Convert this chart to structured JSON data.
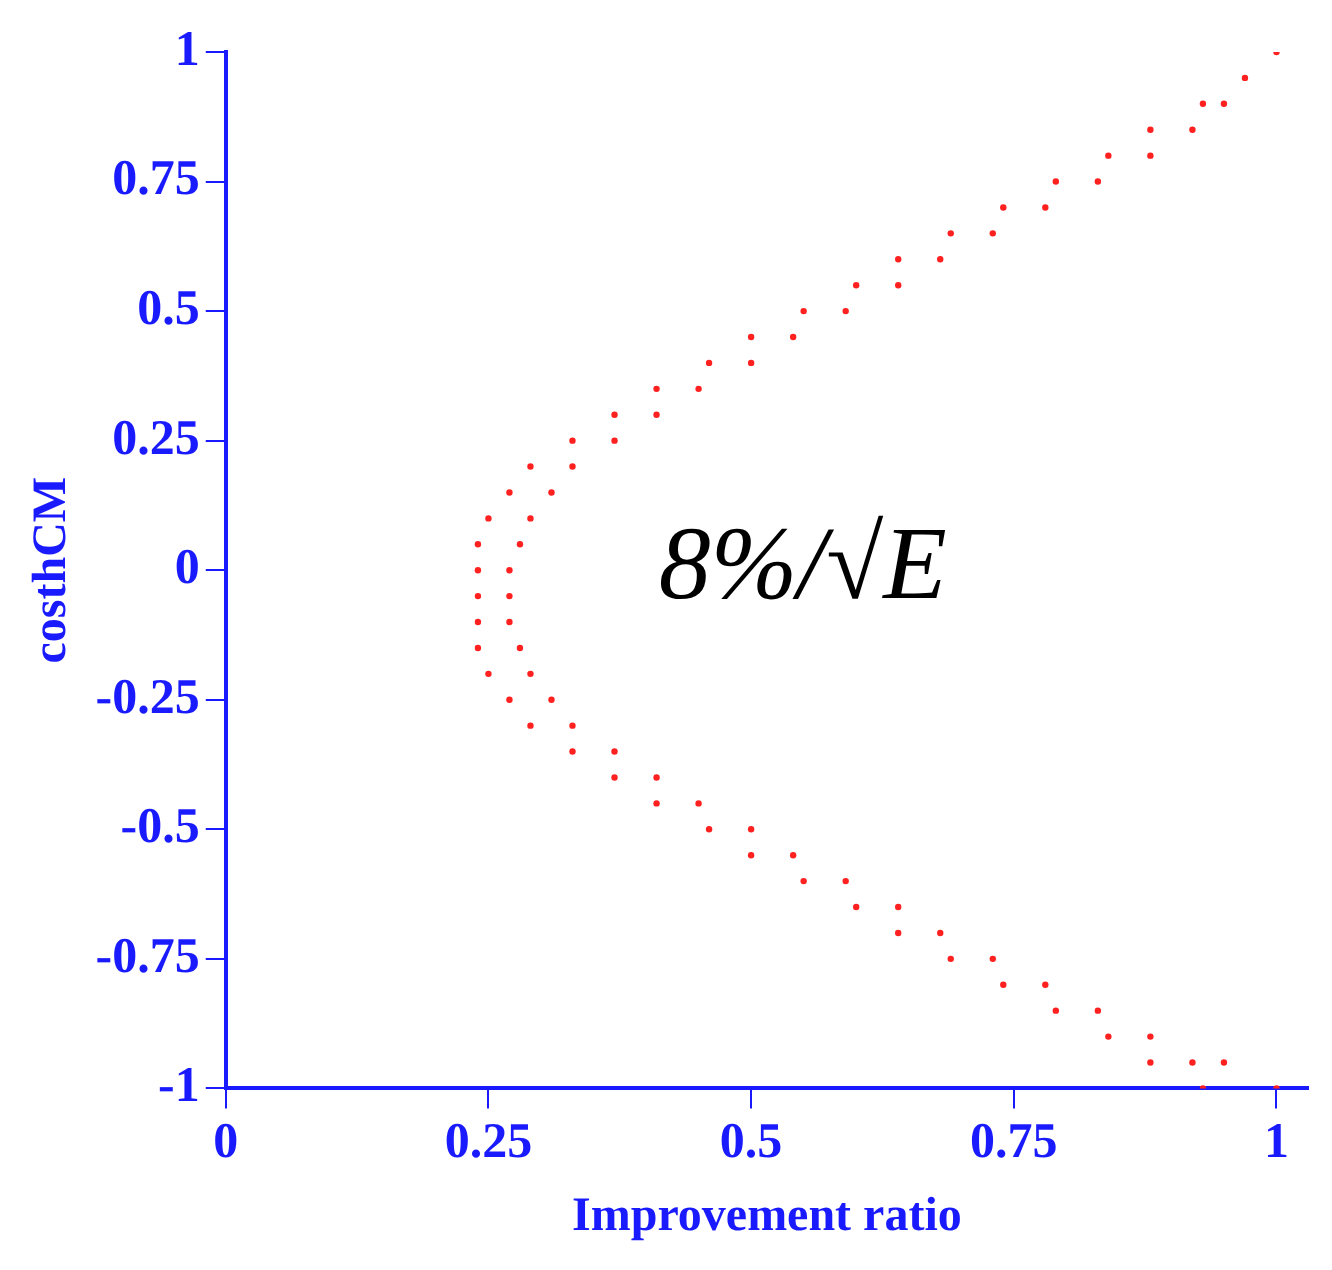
{
  "chart_data": {
    "type": "scatter",
    "xlabel": "Improvement ratio",
    "ylabel": "costhCM",
    "annotations": [
      "8%/√E"
    ],
    "xlim": [
      0,
      1.03
    ],
    "xticks": [
      0,
      0.25,
      0.5,
      0.75,
      1
    ],
    "ylim": [
      -1,
      1
    ],
    "yticks": [
      -1,
      -0.75,
      -0.5,
      -0.25,
      0,
      0.25,
      0.5,
      0.75,
      1
    ],
    "grid": false,
    "legend": false,
    "marker": "circle",
    "series": [
      {
        "color": "#ff2020",
        "x": [
          1.0,
          0.97,
          0.93,
          0.95,
          0.88,
          0.92,
          0.84,
          0.88,
          0.79,
          0.83,
          0.74,
          0.78,
          0.69,
          0.73,
          0.64,
          0.68,
          0.6,
          0.64,
          0.55,
          0.59,
          0.5,
          0.54,
          0.46,
          0.5,
          0.41,
          0.45,
          0.37,
          0.41,
          0.33,
          0.37,
          0.29,
          0.33,
          0.27,
          0.31,
          0.25,
          0.29,
          0.24,
          0.28,
          0.24,
          0.27,
          0.24,
          0.27,
          0.24,
          0.27,
          0.24,
          0.28,
          0.25,
          0.29,
          0.27,
          0.31,
          0.29,
          0.33,
          0.33,
          0.37,
          0.37,
          0.41,
          0.41,
          0.45,
          0.46,
          0.5,
          0.5,
          0.54,
          0.55,
          0.59,
          0.6,
          0.64,
          0.64,
          0.68,
          0.69,
          0.73,
          0.74,
          0.78,
          0.79,
          0.83,
          0.84,
          0.88,
          0.88,
          0.92,
          0.93,
          0.95,
          1.0
        ],
        "values": [
          1.0,
          0.95,
          0.9,
          0.9,
          0.85,
          0.85,
          0.8,
          0.8,
          0.75,
          0.75,
          0.7,
          0.7,
          0.65,
          0.65,
          0.6,
          0.6,
          0.55,
          0.55,
          0.5,
          0.5,
          0.45,
          0.45,
          0.4,
          0.4,
          0.35,
          0.35,
          0.3,
          0.3,
          0.25,
          0.25,
          0.2,
          0.2,
          0.15,
          0.15,
          0.1,
          0.1,
          0.05,
          0.05,
          0.0,
          0.0,
          -0.05,
          -0.05,
          -0.1,
          -0.1,
          -0.15,
          -0.15,
          -0.2,
          -0.2,
          -0.25,
          -0.25,
          -0.3,
          -0.3,
          -0.35,
          -0.35,
          -0.4,
          -0.4,
          -0.45,
          -0.45,
          -0.5,
          -0.5,
          -0.55,
          -0.55,
          -0.6,
          -0.6,
          -0.65,
          -0.65,
          -0.7,
          -0.7,
          -0.75,
          -0.75,
          -0.8,
          -0.8,
          -0.85,
          -0.85,
          -0.9,
          -0.9,
          -0.95,
          -0.95,
          -1.0,
          -0.95,
          -1.0
        ]
      }
    ]
  }
}
